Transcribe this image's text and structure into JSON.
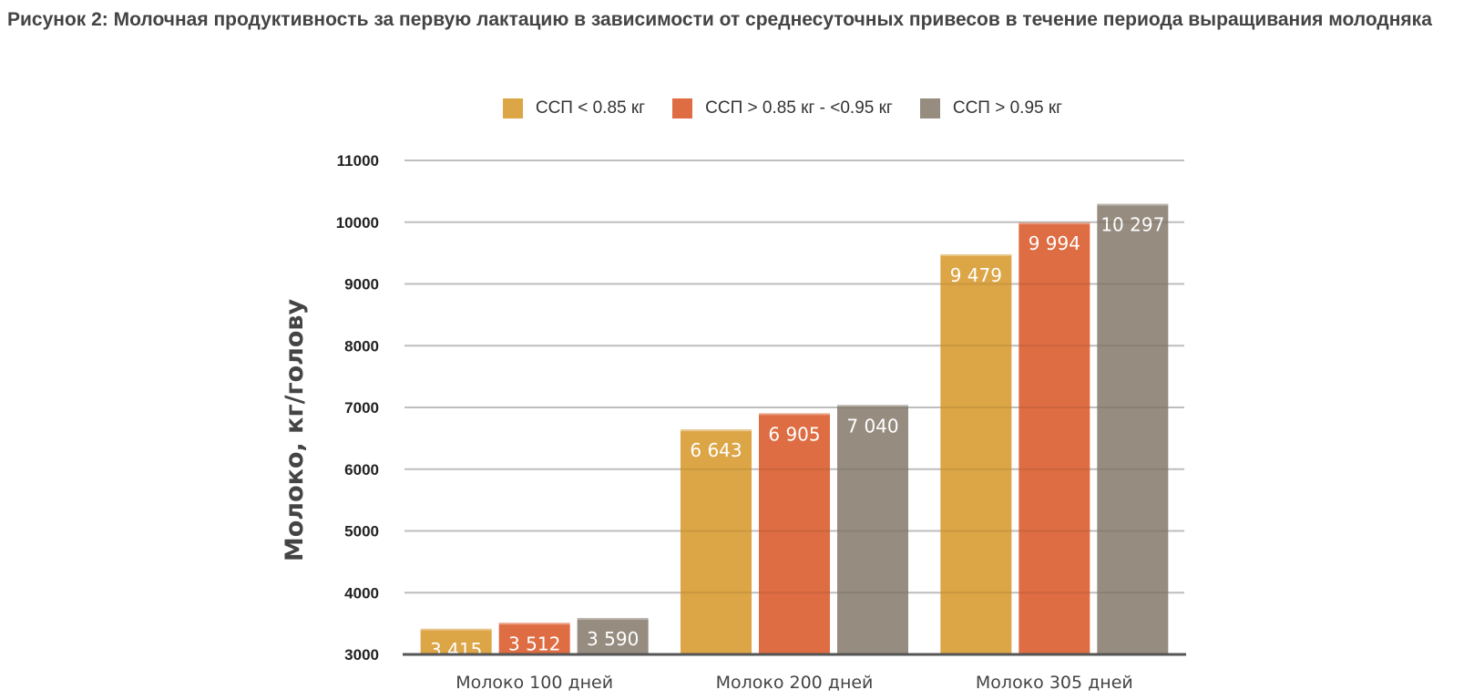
{
  "chart_data": {
    "type": "bar",
    "title": "Рисунок 2: Молочная продуктивность за первую лактацию в зависимости от среднесуточных привесов в течение периода выращивания молодняка",
    "xlabel": "",
    "ylabel": "Молоко, кг/голову",
    "ylim": [
      3000,
      11000
    ],
    "yticks": [
      "3000",
      "4000",
      "5000",
      "6000",
      "7000",
      "8000",
      "9000",
      "10000",
      "11000"
    ],
    "grid": true,
    "legend_position": "top",
    "categories": [
      "Молоко 100 дней",
      "Молоко 200 дней",
      "Молоко 305 дней"
    ],
    "series": [
      {
        "name": "ССП < 0.85 кг",
        "color": "#DCA546",
        "values": [
          3415,
          6643,
          9479
        ],
        "labels": [
          "3 415",
          "6 643",
          "9 479"
        ]
      },
      {
        "name": "ССП > 0.85 кг - <0.95 кг",
        "color": "#DE6D43",
        "values": [
          3512,
          6905,
          9994
        ],
        "labels": [
          "3 512",
          "6 905",
          "9 994"
        ]
      },
      {
        "name": "ССП > 0.95 кг",
        "color": "#968C80",
        "values": [
          3590,
          7040,
          10297
        ],
        "labels": [
          "3 590",
          "7 040",
          "10 297"
        ]
      }
    ]
  }
}
